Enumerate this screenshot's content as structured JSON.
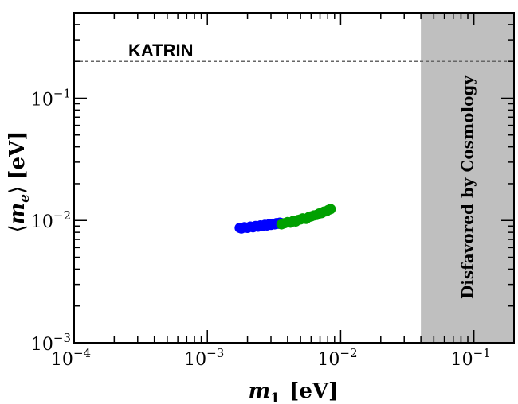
{
  "chart_data": {
    "type": "scatter",
    "x_scale": "log",
    "y_scale": "log",
    "xlim": [
      0.0001,
      0.2
    ],
    "ylim": [
      0.001,
      0.5
    ],
    "xlabel_main": "m",
    "xlabel_sub": "1",
    "xlabel_unit": "[eV]",
    "ylabel_main": "m",
    "ylabel_sub": "e",
    "ylabel_open": "⟨",
    "ylabel_close": "⟩",
    "ylabel_unit": "[eV]",
    "x_ticks": [
      {
        "value": 0.0001,
        "base": "10",
        "exp": "−4"
      },
      {
        "value": 0.001,
        "base": "10",
        "exp": "−3"
      },
      {
        "value": 0.01,
        "base": "10",
        "exp": "−2"
      },
      {
        "value": 0.1,
        "base": "10",
        "exp": "−1"
      }
    ],
    "y_ticks": [
      {
        "value": 0.001,
        "base": "10",
        "exp": "−3"
      },
      {
        "value": 0.01,
        "base": "10",
        "exp": "−2"
      },
      {
        "value": 0.1,
        "base": "10",
        "exp": "−1"
      }
    ],
    "reference_line": {
      "label": "KATRIN",
      "y": 0.2,
      "style": "dashed",
      "color": "#666666"
    },
    "shaded_region": {
      "label": "Disfavored by Cosmology",
      "x_from": 0.04,
      "x_to": 0.2,
      "color": "#bfbfbf"
    },
    "series": [
      {
        "name": "blue",
        "color": "#0000ff",
        "points": [
          [
            0.00175,
            0.0087
          ],
          [
            0.0018,
            0.0086
          ],
          [
            0.0019,
            0.0088
          ],
          [
            0.002,
            0.0087
          ],
          [
            0.0021,
            0.0089
          ],
          [
            0.0022,
            0.0088
          ],
          [
            0.0023,
            0.009
          ],
          [
            0.0024,
            0.0089
          ],
          [
            0.0025,
            0.0091
          ],
          [
            0.0026,
            0.009
          ],
          [
            0.0027,
            0.0092
          ],
          [
            0.0028,
            0.0091
          ],
          [
            0.0029,
            0.0093
          ],
          [
            0.003,
            0.0092
          ],
          [
            0.0031,
            0.0094
          ],
          [
            0.0032,
            0.0093
          ],
          [
            0.0033,
            0.0095
          ],
          [
            0.0034,
            0.0094
          ],
          [
            0.0035,
            0.0096
          ],
          [
            0.0036,
            0.0095
          ]
        ]
      },
      {
        "name": "green",
        "color": "#00a000",
        "points": [
          [
            0.0036,
            0.0093
          ],
          [
            0.0038,
            0.0095
          ],
          [
            0.004,
            0.0097
          ],
          [
            0.0042,
            0.0096
          ],
          [
            0.0044,
            0.0099
          ],
          [
            0.0046,
            0.0098
          ],
          [
            0.0048,
            0.0101
          ],
          [
            0.005,
            0.0102
          ],
          [
            0.0052,
            0.0104
          ],
          [
            0.0055,
            0.0103
          ],
          [
            0.0058,
            0.0107
          ],
          [
            0.006,
            0.0108
          ],
          [
            0.0063,
            0.011
          ],
          [
            0.0066,
            0.0111
          ],
          [
            0.0069,
            0.0114
          ],
          [
            0.0072,
            0.0115
          ],
          [
            0.0075,
            0.0118
          ],
          [
            0.0078,
            0.0119
          ],
          [
            0.0081,
            0.0122
          ],
          [
            0.0084,
            0.0124
          ]
        ]
      }
    ]
  }
}
